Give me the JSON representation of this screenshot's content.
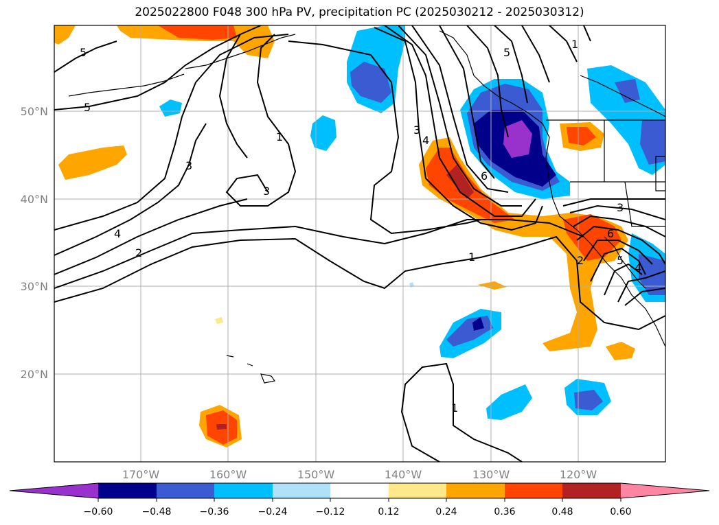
{
  "title": "2025022800 F048 300 hPa PV, precipitation PC (2025030212 - 2025030312)",
  "map": {
    "lat_labels": [
      "50°N",
      "40°N",
      "30°N",
      "20°N"
    ],
    "lon_labels": [
      "170°W",
      "160°W",
      "150°W",
      "140°W",
      "130°W",
      "120°W"
    ],
    "contour_labels": [
      "5",
      "5",
      "3",
      "4",
      "2",
      "3",
      "1",
      "3",
      "4",
      "5",
      "1",
      "6",
      "1",
      "3",
      "6",
      "2",
      "5",
      "4",
      "1"
    ]
  },
  "colorbar": {
    "tick_labels": [
      "−0.60",
      "−0.48",
      "−0.36",
      "−0.24",
      "−0.12",
      "0.12",
      "0.24",
      "0.36",
      "0.48",
      "0.60"
    ],
    "colors": [
      "#9932cc",
      "#00008b",
      "#3a5bd2",
      "#00bfff",
      "#afe1fa",
      "#ffffff",
      "#ffe88a",
      "#ffa500",
      "#ff4500",
      "#b22222",
      "#ff85a2"
    ]
  }
}
